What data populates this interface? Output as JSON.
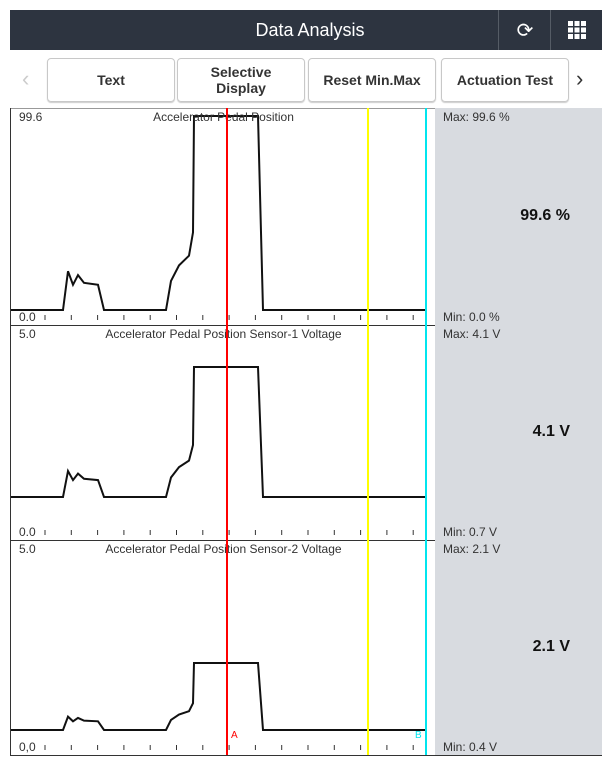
{
  "header": {
    "title": "Data Analysis",
    "refresh_icon": "refresh-icon",
    "grid_icon": "grid-menu-icon"
  },
  "toolbar": {
    "buttons": [
      "Text",
      "Selective\nDisplay",
      "Reset Min.Max",
      "Actuation Test"
    ],
    "prev": "‹",
    "next": "›"
  },
  "channels": [
    {
      "name": "Accelerator Pedal Position",
      "top": "99.6",
      "bottom": "0.0",
      "max": "Max: 99.6 %",
      "min": "Min: 0.0 %",
      "value": "99.6 %"
    },
    {
      "name": "Accelerator Pedal Position Sensor-1 Voltage",
      "top": "5.0",
      "bottom": "0.0",
      "max": "Max: 4.1 V",
      "min": "Min: 0.7 V",
      "value": "4.1 V"
    },
    {
      "name": "Accelerator Pedal Position Sensor-2 Voltage",
      "top": "5.0",
      "bottom": "0,0",
      "max": "Max: 2.1 V",
      "min": "Min: 0.4 V",
      "value": "2.1 V"
    }
  ],
  "cursors": {
    "a_label": "A",
    "b_label": "B",
    "a_color": "#ff0000",
    "b_color": "#00e5ee",
    "marker_color": "#ffff00"
  }
}
